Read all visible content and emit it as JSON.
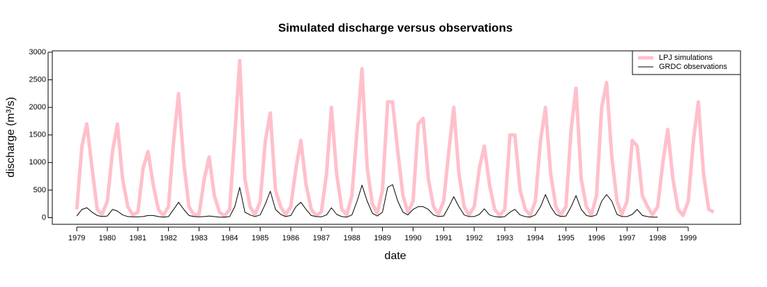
{
  "chart_data": {
    "type": "line",
    "title": "Simulated discharge versus observations",
    "xlabel": "date",
    "ylabel": "discharge (m³/s)",
    "x": [
      1979,
      1979.17,
      1979.33,
      1979.5,
      1979.67,
      1979.83,
      1980,
      1980.17,
      1980.33,
      1980.5,
      1980.67,
      1980.83,
      1981,
      1981.17,
      1981.33,
      1981.5,
      1981.67,
      1981.83,
      1982,
      1982.17,
      1982.33,
      1982.5,
      1982.67,
      1982.83,
      1983,
      1983.17,
      1983.33,
      1983.5,
      1983.67,
      1983.83,
      1984,
      1984.17,
      1984.33,
      1984.5,
      1984.67,
      1984.83,
      1985,
      1985.17,
      1985.33,
      1985.5,
      1985.67,
      1985.83,
      1986,
      1986.17,
      1986.33,
      1986.5,
      1986.67,
      1986.83,
      1987,
      1987.17,
      1987.33,
      1987.5,
      1987.67,
      1987.83,
      1988,
      1988.17,
      1988.33,
      1988.5,
      1988.67,
      1988.83,
      1989,
      1989.17,
      1989.33,
      1989.5,
      1989.67,
      1989.83,
      1990,
      1990.17,
      1990.33,
      1990.5,
      1990.67,
      1990.83,
      1991,
      1991.17,
      1991.33,
      1991.5,
      1991.67,
      1991.83,
      1992,
      1992.17,
      1992.33,
      1992.5,
      1992.67,
      1992.83,
      1993,
      1993.17,
      1993.33,
      1993.5,
      1993.67,
      1993.83,
      1994,
      1994.17,
      1994.33,
      1994.5,
      1994.67,
      1994.83,
      1995,
      1995.17,
      1995.33,
      1995.5,
      1995.67,
      1995.83,
      1996,
      1996.17,
      1996.33,
      1996.5,
      1996.67,
      1996.83,
      1997,
      1997.17,
      1997.33,
      1997.5,
      1997.67,
      1997.83,
      1998,
      1998.17,
      1998.33,
      1998.5,
      1998.67,
      1998.83,
      1999,
      1999.17,
      1999.33,
      1999.5,
      1999.67,
      1999.83
    ],
    "series": [
      {
        "name": "LPJ simulations",
        "color": "#ffc0cb",
        "width": 5,
        "values": [
          150,
          1300,
          1700,
          900,
          150,
          60,
          300,
          1200,
          1700,
          700,
          200,
          50,
          100,
          900,
          1200,
          600,
          150,
          40,
          200,
          1400,
          2250,
          1000,
          200,
          50,
          60,
          700,
          1100,
          400,
          100,
          30,
          150,
          1500,
          2850,
          700,
          200,
          50,
          300,
          1400,
          1900,
          500,
          200,
          50,
          200,
          900,
          1400,
          600,
          150,
          40,
          100,
          800,
          2000,
          800,
          150,
          50,
          400,
          1600,
          2700,
          900,
          250,
          80,
          500,
          2100,
          2100,
          1200,
          400,
          100,
          300,
          1700,
          1800,
          700,
          200,
          60,
          300,
          1200,
          2000,
          800,
          200,
          50,
          200,
          900,
          1300,
          600,
          150,
          40,
          150,
          1500,
          1500,
          500,
          150,
          40,
          300,
          1400,
          2000,
          800,
          200,
          50,
          200,
          1600,
          2350,
          700,
          200,
          50,
          400,
          2000,
          2450,
          1100,
          300,
          60,
          300,
          1400,
          1300,
          400,
          200,
          50,
          200,
          1000,
          1600,
          700,
          150,
          40,
          300,
          1400,
          2100,
          800,
          150,
          100
        ]
      },
      {
        "name": "GRDC observations",
        "color": "#000000",
        "width": 1,
        "values": [
          30,
          150,
          180,
          100,
          40,
          20,
          30,
          150,
          120,
          50,
          20,
          15,
          15,
          20,
          40,
          40,
          20,
          10,
          20,
          150,
          280,
          150,
          40,
          20,
          15,
          20,
          30,
          20,
          10,
          10,
          20,
          200,
          550,
          100,
          50,
          20,
          50,
          250,
          480,
          150,
          60,
          20,
          40,
          200,
          280,
          150,
          40,
          20,
          15,
          50,
          180,
          60,
          20,
          10,
          50,
          300,
          590,
          300,
          80,
          30,
          100,
          550,
          600,
          300,
          100,
          50,
          150,
          200,
          200,
          150,
          50,
          20,
          30,
          200,
          380,
          200,
          50,
          20,
          20,
          60,
          160,
          50,
          20,
          10,
          20,
          100,
          150,
          50,
          20,
          10,
          50,
          200,
          420,
          200,
          60,
          20,
          30,
          200,
          400,
          150,
          40,
          20,
          50,
          300,
          420,
          300,
          60,
          20,
          20,
          60,
          150,
          40,
          20,
          10,
          10,
          null,
          null,
          null,
          null,
          null,
          null,
          null,
          null,
          null,
          null,
          null
        ]
      }
    ],
    "xlim": [
      1978.2,
      2000.71
    ],
    "xticks": [
      1979,
      1980,
      1981,
      1982,
      1983,
      1984,
      1985,
      1986,
      1987,
      1988,
      1989,
      1990,
      1991,
      1992,
      1993,
      1994,
      1995,
      1996,
      1997,
      1998,
      1999
    ],
    "ylim": [
      -120,
      3025
    ],
    "yticks": [
      0,
      500,
      1000,
      1500,
      2000,
      2500,
      3000
    ],
    "legend": "topright"
  }
}
